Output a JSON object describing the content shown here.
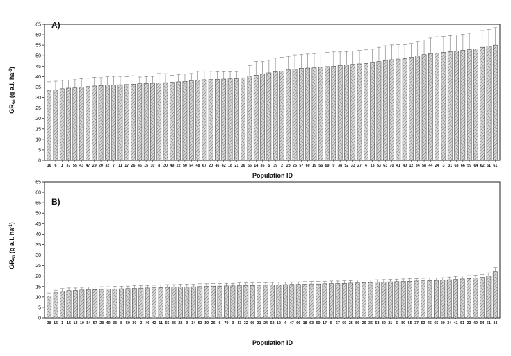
{
  "chart_data": [
    {
      "type": "bar",
      "panel_label": "A)",
      "xlabel": "Population ID",
      "ylabel_main": "GR",
      "ylabel_sub": "50",
      "ylabel_rest": " (g a.i. ha",
      "ylabel_sup": "-1",
      "ylabel_end": ")",
      "ylim": [
        0,
        65
      ],
      "ytick_step": 5,
      "grid": false,
      "bar_pattern": "diagonal-hatch",
      "bar_fill": "#d8d8d8",
      "error_color": "#777777",
      "categories": [
        "16",
        "6",
        "1",
        "37",
        "55",
        "43",
        "47",
        "29",
        "20",
        "32",
        "7",
        "11",
        "17",
        "26",
        "46",
        "15",
        "10",
        "8",
        "30",
        "49",
        "22",
        "50",
        "54",
        "48",
        "67",
        "20",
        "45",
        "42",
        "18",
        "21",
        "36",
        "65",
        "14",
        "35",
        "5",
        "39",
        "2",
        "23",
        "25",
        "57",
        "60",
        "19",
        "56",
        "69",
        "9",
        "38",
        "52",
        "33",
        "27",
        "4",
        "13",
        "53",
        "63",
        "70",
        "41",
        "40",
        "12",
        "34",
        "58",
        "44",
        "24",
        "3",
        "31",
        "68",
        "66",
        "59",
        "64",
        "62",
        "51",
        "61"
      ],
      "values": [
        33.5,
        33.6,
        34.2,
        34.5,
        34.6,
        35,
        35.3,
        35.5,
        35.7,
        35.9,
        36,
        36.1,
        36.2,
        36.4,
        36.6,
        36.7,
        36.8,
        37,
        37.1,
        37.3,
        37.5,
        37.7,
        38,
        38.3,
        38.5,
        38.6,
        38.7,
        38.8,
        38.9,
        39,
        39.4,
        40.2,
        40.7,
        41.2,
        41.8,
        42.3,
        42.7,
        43.2,
        43.6,
        44,
        44.1,
        44.2,
        44.5,
        44.8,
        45,
        45.3,
        45.6,
        45.9,
        46.1,
        46.3,
        46.6,
        47.2,
        47.7,
        48.1,
        48.4,
        48.6,
        49.3,
        50,
        50.5,
        51,
        51.2,
        51.6,
        52,
        52.3,
        52.6,
        52.9,
        53.3,
        54,
        54.5,
        55
      ],
      "errors": [
        4,
        4.2,
        4,
        3.8,
        3.9,
        4,
        3.9,
        4.2,
        3.8,
        4,
        4.1,
        4,
        3.8,
        4,
        3.2,
        3.3,
        3.3,
        4.5,
        4.3,
        3.3,
        3.4,
        3.5,
        3.5,
        4.2,
        4.2,
        3.9,
        3.6,
        3.5,
        3.4,
        3.4,
        3.3,
        5,
        6.5,
        6,
        6,
        6.5,
        6.5,
        6.5,
        6.8,
        6.5,
        6.7,
        6.8,
        6.7,
        6.8,
        6.8,
        6.5,
        6.4,
        6.4,
        6.4,
        6.5,
        6.5,
        6.8,
        7,
        7,
        6.8,
        6.6,
        6.5,
        6.8,
        7.1,
        7.4,
        7.8,
        7.6,
        7.6,
        7.6,
        7.6,
        7.8,
        7.6,
        8,
        8,
        8.4
      ]
    },
    {
      "type": "bar",
      "panel_label": "B)",
      "xlabel": "Population ID",
      "ylabel_main": "GR",
      "ylabel_sub": "50",
      "ylabel_rest": " (g a.i. ha",
      "ylabel_sup": "-1",
      "ylabel_end": ")",
      "ylim": [
        0,
        65
      ],
      "ytick_step": 5,
      "grid": false,
      "bar_pattern": "diagonal-hatch",
      "bar_fill": "#d8d8d8",
      "error_color": "#777777",
      "categories": [
        "38",
        "16",
        "1",
        "15",
        "13",
        "10",
        "54",
        "57",
        "28",
        "40",
        "33",
        "8",
        "50",
        "30",
        "2",
        "46",
        "42",
        "11",
        "55",
        "35",
        "22",
        "9",
        "14",
        "53",
        "19",
        "26",
        "6",
        "70",
        "3",
        "43",
        "32",
        "66",
        "31",
        "24",
        "62",
        "12",
        "4",
        "47",
        "66",
        "18",
        "63",
        "60",
        "17",
        "5",
        "67",
        "69",
        "25",
        "56",
        "29",
        "36",
        "58",
        "39",
        "21",
        "6",
        "59",
        "65",
        "37",
        "52",
        "45",
        "65",
        "20",
        "34",
        "41",
        "51",
        "23",
        "49",
        "64",
        "61",
        "44"
      ],
      "values": [
        10.5,
        12,
        12.8,
        13,
        13.1,
        13.3,
        13.4,
        13.5,
        13.6,
        13.7,
        13.8,
        13.9,
        14,
        14.1,
        14.2,
        14.3,
        14.4,
        14.5,
        14.6,
        14.7,
        14.8,
        14.8,
        14.9,
        15,
        15.1,
        15.2,
        15.2,
        15.3,
        15.3,
        15.4,
        15.5,
        15.5,
        15.6,
        15.6,
        15.7,
        15.8,
        15.9,
        16,
        16,
        16.1,
        16.2,
        16.2,
        16.3,
        16.4,
        16.4,
        16.5,
        16.6,
        16.7,
        16.8,
        16.9,
        17,
        17.1,
        17.2,
        17.3,
        17.4,
        17.5,
        17.6,
        17.7,
        17.8,
        17.9,
        18,
        18.2,
        18.4,
        18.6,
        18.8,
        19,
        19.4,
        20,
        22
      ],
      "errors": [
        1.4,
        1.2,
        1.2,
        1.3,
        1.2,
        1.3,
        1.3,
        1.2,
        1.3,
        1.2,
        1.3,
        1.2,
        1.2,
        1.3,
        1.2,
        1.2,
        1.2,
        1.2,
        1.3,
        1.2,
        1.3,
        1.3,
        1.2,
        1.3,
        1.2,
        1.2,
        1.2,
        1.2,
        1.2,
        1.3,
        1.2,
        1.2,
        1.2,
        1.2,
        1.2,
        1.2,
        1.2,
        1.2,
        1.2,
        1.2,
        1.2,
        1.2,
        1.2,
        1.2,
        1.2,
        1.2,
        1.2,
        1.3,
        1.2,
        1.2,
        1.2,
        1.2,
        1.2,
        1.2,
        1.2,
        1.2,
        1.2,
        1.2,
        1.2,
        1.2,
        1.2,
        1.3,
        1.4,
        1.4,
        1.4,
        1.4,
        1.4,
        1.5,
        2
      ]
    }
  ]
}
